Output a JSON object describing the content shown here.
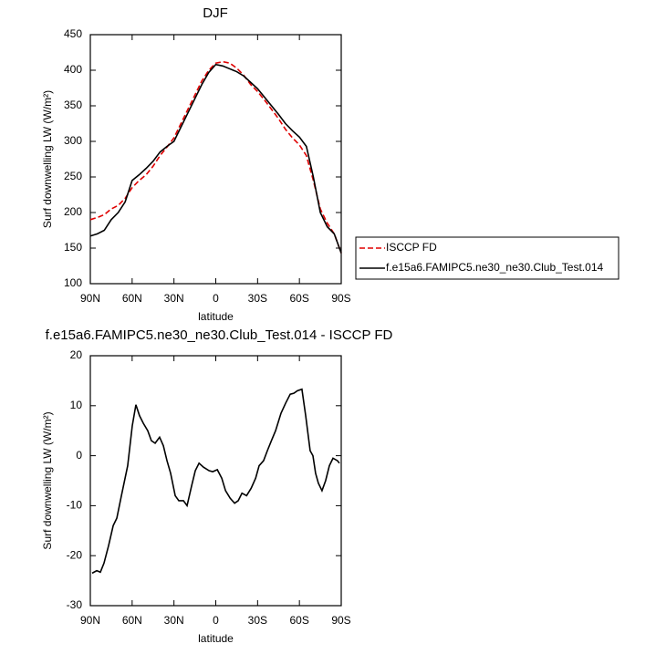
{
  "chart_data": [
    {
      "type": "line",
      "title": "DJF",
      "xlabel": "latitude",
      "ylabel": "Surf downwelling LW (W/m²)",
      "x": [
        90,
        85,
        80,
        75,
        70,
        65,
        60,
        55,
        50,
        45,
        40,
        35,
        30,
        25,
        20,
        15,
        10,
        5,
        0,
        -5,
        -10,
        -15,
        -20,
        -25,
        -30,
        -35,
        -40,
        -45,
        -50,
        -55,
        -60,
        -65,
        -70,
        -75,
        -80,
        -85,
        -90
      ],
      "series": [
        {
          "name": "ISCCP FD",
          "color": "#e00000",
          "line_style": "dashed",
          "values": [
            190,
            193,
            197,
            205,
            210,
            220,
            235,
            245,
            253,
            265,
            280,
            292,
            305,
            325,
            345,
            365,
            385,
            400,
            410,
            412,
            410,
            403,
            393,
            380,
            370,
            358,
            345,
            332,
            317,
            305,
            295,
            280,
            245,
            205,
            185,
            170,
            143
          ]
        },
        {
          "name": "f.e15a6.FAMIPC5.ne30_ne30.Club_Test.014",
          "color": "#000000",
          "line_style": "solid",
          "values": [
            167,
            170,
            175,
            190,
            200,
            215,
            245,
            253,
            262,
            272,
            285,
            293,
            300,
            320,
            340,
            360,
            380,
            397,
            408,
            406,
            402,
            398,
            392,
            383,
            374,
            362,
            350,
            338,
            325,
            315,
            306,
            293,
            250,
            200,
            180,
            170,
            143
          ]
        }
      ],
      "xlim": [
        90,
        -90
      ],
      "xticks": [
        {
          "value": 90,
          "label": "90N"
        },
        {
          "value": 60,
          "label": "60N"
        },
        {
          "value": 30,
          "label": "30N"
        },
        0,
        {
          "value": -30,
          "label": "30S"
        },
        {
          "value": -60,
          "label": "60S"
        },
        {
          "value": -90,
          "label": "90S"
        }
      ],
      "ylim": [
        100,
        450
      ],
      "yticks": [
        100,
        150,
        200,
        250,
        300,
        350,
        400,
        450
      ],
      "legend": "right"
    },
    {
      "type": "line",
      "title": "f.e15a6.FAMIPC5.ne30_ne30.Club_Test.014 - ISCCP FD",
      "xlabel": "latitude",
      "ylabel": "Surf downwelling LW (W/m²)",
      "x": [
        88.7,
        85.4,
        82.8,
        80.2,
        76.9,
        73.6,
        71.0,
        67.7,
        63.2,
        59.9,
        57.3,
        54.7,
        52.0,
        48.8,
        46.2,
        43.5,
        40.3,
        37.6,
        35.0,
        32.4,
        29.1,
        26.5,
        23.2,
        20.6,
        17.3,
        14.7,
        12.0,
        8.8,
        4.8,
        2.2,
        -1.1,
        -4.3,
        -7.0,
        -10.3,
        -13.5,
        -16.1,
        -18.8,
        -22.1,
        -25.4,
        -28.6,
        -31.1,
        -34.3,
        -37.0,
        -40.2,
        -42.9,
        -46.8,
        -50.1,
        -53.4,
        -56.0,
        -58.6,
        -61.8,
        -64.5,
        -67.7,
        -69.7,
        -71.6,
        -73.6,
        -76.2,
        -78.8,
        -81.5,
        -84.1,
        -87.3,
        -88.7
      ],
      "series": [
        {
          "color": "#000000",
          "line_style": "solid",
          "values": [
            -23.5,
            -23,
            -23.3,
            -21.5,
            -18,
            -14,
            -12.5,
            -8,
            -2,
            6,
            10.2,
            8,
            6.5,
            5,
            3,
            2.5,
            3.7,
            2,
            -1,
            -3.5,
            -8,
            -9,
            -9,
            -10,
            -6,
            -3,
            -1.5,
            -2.3,
            -3,
            -3.2,
            -2.8,
            -4.5,
            -7,
            -8.5,
            -9.5,
            -9,
            -7.5,
            -8,
            -6.5,
            -4.5,
            -2,
            -1,
            1,
            3.2,
            5,
            8.5,
            10.5,
            12.3,
            12.5,
            13,
            13.3,
            8,
            1,
            0,
            -3.5,
            -5.5,
            -7,
            -5,
            -2,
            -0.5,
            -1,
            -1.5
          ]
        }
      ],
      "xlim": [
        90,
        -90
      ],
      "xticks": [
        {
          "value": 90,
          "label": "90N"
        },
        {
          "value": 60,
          "label": "60N"
        },
        {
          "value": 30,
          "label": "30N"
        },
        0,
        {
          "value": -30,
          "label": "30S"
        },
        {
          "value": -60,
          "label": "60S"
        },
        {
          "value": -90,
          "label": "90S"
        }
      ],
      "ylim": [
        -30,
        20
      ],
      "yticks": [
        -30,
        -20,
        -10,
        0,
        10,
        20
      ]
    }
  ]
}
